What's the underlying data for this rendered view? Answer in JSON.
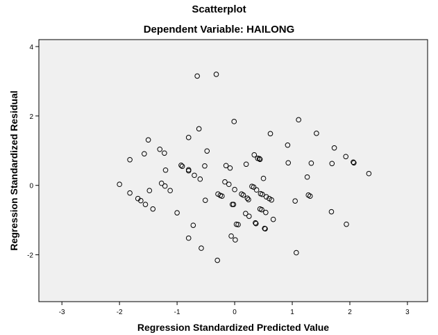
{
  "chart_data": {
    "type": "scatter",
    "title": "Scatterplot",
    "subtitle": "Dependent Variable: HAILONG",
    "xlabel": "Regression Standardized Predicted Value",
    "ylabel": "Regression Standardized Residual",
    "xlim": [
      -3.4,
      3.35
    ],
    "ylim": [
      -3.35,
      4.2
    ],
    "xticks": [
      -3,
      -2,
      -1,
      0,
      1,
      2,
      3
    ],
    "yticks": [
      -2,
      0,
      2,
      4
    ],
    "grid": false,
    "plot_background": "#f0f0f0",
    "marker_color": "#000000",
    "points": [
      {
        "x": -2.0,
        "y": 0.03
      },
      {
        "x": -1.82,
        "y": 0.74
      },
      {
        "x": -1.82,
        "y": -0.22
      },
      {
        "x": -1.68,
        "y": -0.38
      },
      {
        "x": -1.63,
        "y": -0.44
      },
      {
        "x": -1.57,
        "y": 0.91
      },
      {
        "x": -1.55,
        "y": -0.55
      },
      {
        "x": -1.5,
        "y": 1.31
      },
      {
        "x": -1.48,
        "y": -0.15
      },
      {
        "x": -1.42,
        "y": -0.68
      },
      {
        "x": -1.3,
        "y": 1.04
      },
      {
        "x": -1.27,
        "y": 0.06
      },
      {
        "x": -1.22,
        "y": 0.93
      },
      {
        "x": -1.21,
        "y": -0.02
      },
      {
        "x": -1.2,
        "y": 0.44
      },
      {
        "x": -1.12,
        "y": -0.15
      },
      {
        "x": -1.0,
        "y": -0.79
      },
      {
        "x": -0.93,
        "y": 0.58
      },
      {
        "x": -0.91,
        "y": 0.55
      },
      {
        "x": -0.8,
        "y": 0.45
      },
      {
        "x": -0.8,
        "y": 0.42
      },
      {
        "x": -0.8,
        "y": 1.38
      },
      {
        "x": -0.8,
        "y": -1.52
      },
      {
        "x": -0.72,
        "y": -1.15
      },
      {
        "x": -0.7,
        "y": 0.29
      },
      {
        "x": -0.65,
        "y": 3.15
      },
      {
        "x": -0.62,
        "y": 1.63
      },
      {
        "x": -0.6,
        "y": 0.18
      },
      {
        "x": -0.58,
        "y": -1.81
      },
      {
        "x": -0.52,
        "y": 0.56
      },
      {
        "x": -0.51,
        "y": -0.43
      },
      {
        "x": -0.48,
        "y": 0.99
      },
      {
        "x": -0.32,
        "y": 3.2
      },
      {
        "x": -0.3,
        "y": -2.16
      },
      {
        "x": -0.29,
        "y": -0.25
      },
      {
        "x": -0.25,
        "y": -0.29
      },
      {
        "x": -0.22,
        "y": -0.31
      },
      {
        "x": -0.17,
        "y": 0.1
      },
      {
        "x": -0.15,
        "y": 0.57
      },
      {
        "x": -0.1,
        "y": 0.03
      },
      {
        "x": -0.08,
        "y": 0.5
      },
      {
        "x": -0.06,
        "y": -1.46
      },
      {
        "x": -0.04,
        "y": -0.55
      },
      {
        "x": -0.02,
        "y": -0.55
      },
      {
        "x": -0.01,
        "y": 1.84
      },
      {
        "x": 0.0,
        "y": -0.12
      },
      {
        "x": 0.01,
        "y": -1.57
      },
      {
        "x": 0.03,
        "y": -1.12
      },
      {
        "x": 0.06,
        "y": -1.13
      },
      {
        "x": 0.12,
        "y": -0.25
      },
      {
        "x": 0.15,
        "y": -0.28
      },
      {
        "x": 0.19,
        "y": -0.81
      },
      {
        "x": 0.2,
        "y": 0.61
      },
      {
        "x": 0.22,
        "y": -0.37
      },
      {
        "x": 0.24,
        "y": -0.41
      },
      {
        "x": 0.25,
        "y": -0.89
      },
      {
        "x": 0.3,
        "y": -0.03
      },
      {
        "x": 0.33,
        "y": -0.05
      },
      {
        "x": 0.34,
        "y": 0.88
      },
      {
        "x": 0.36,
        "y": -1.08
      },
      {
        "x": 0.37,
        "y": -1.1
      },
      {
        "x": 0.38,
        "y": -0.13
      },
      {
        "x": 0.4,
        "y": 0.78
      },
      {
        "x": 0.43,
        "y": 0.77
      },
      {
        "x": 0.44,
        "y": 0.75
      },
      {
        "x": 0.45,
        "y": -0.24
      },
      {
        "x": 0.44,
        "y": -0.68
      },
      {
        "x": 0.47,
        "y": -0.7
      },
      {
        "x": 0.48,
        "y": -0.26
      },
      {
        "x": 0.5,
        "y": 0.2
      },
      {
        "x": 0.52,
        "y": -1.24
      },
      {
        "x": 0.53,
        "y": -1.25
      },
      {
        "x": 0.54,
        "y": -0.78
      },
      {
        "x": 0.55,
        "y": -0.33
      },
      {
        "x": 0.6,
        "y": -0.38
      },
      {
        "x": 0.62,
        "y": 1.49
      },
      {
        "x": 0.64,
        "y": -0.42
      },
      {
        "x": 0.67,
        "y": -0.98
      },
      {
        "x": 0.92,
        "y": 1.16
      },
      {
        "x": 0.93,
        "y": 0.65
      },
      {
        "x": 1.05,
        "y": -0.45
      },
      {
        "x": 1.07,
        "y": -1.94
      },
      {
        "x": 1.11,
        "y": 1.89
      },
      {
        "x": 1.26,
        "y": 0.24
      },
      {
        "x": 1.28,
        "y": -0.28
      },
      {
        "x": 1.31,
        "y": -0.31
      },
      {
        "x": 1.33,
        "y": 0.64
      },
      {
        "x": 1.42,
        "y": 1.5
      },
      {
        "x": 1.68,
        "y": -0.76
      },
      {
        "x": 1.69,
        "y": 0.63
      },
      {
        "x": 1.73,
        "y": 1.08
      },
      {
        "x": 1.93,
        "y": 0.83
      },
      {
        "x": 1.94,
        "y": -1.12
      },
      {
        "x": 2.06,
        "y": 0.67
      },
      {
        "x": 2.07,
        "y": 0.65
      },
      {
        "x": 2.33,
        "y": 0.34
      }
    ]
  }
}
